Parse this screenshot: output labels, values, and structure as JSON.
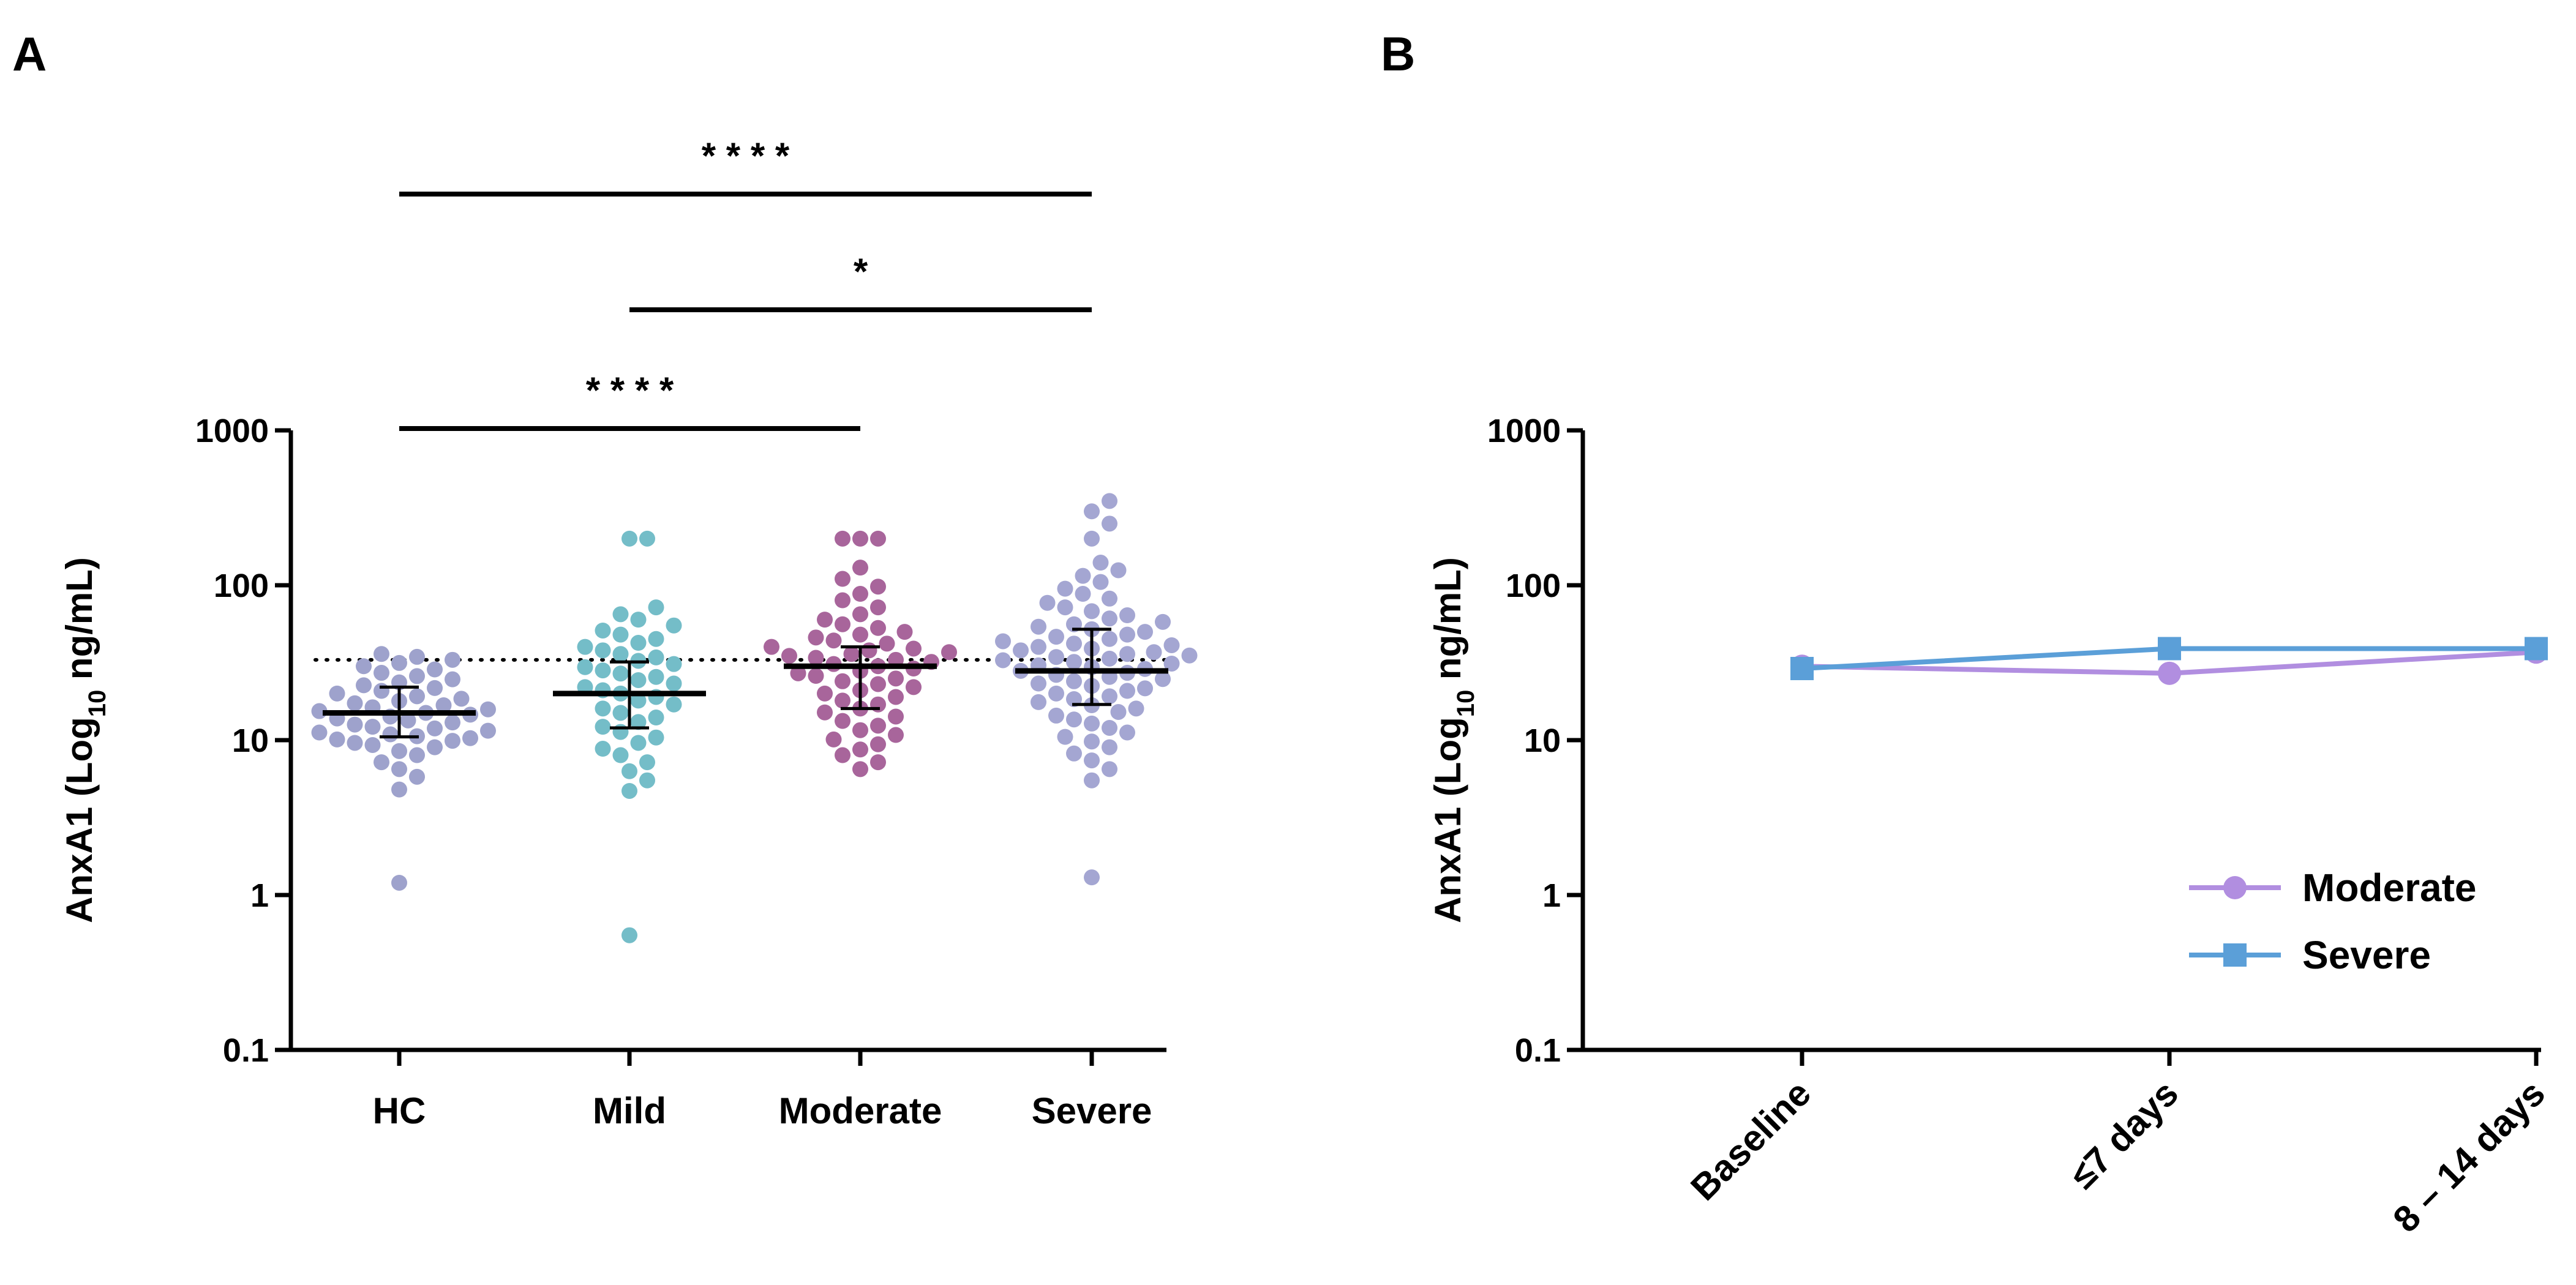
{
  "chart_data": [
    {
      "panel": "A",
      "type": "scatter",
      "title": "",
      "xlabel": "",
      "ylabel": "AnxA1 (Log",
      "ylabel_sub": "10",
      "ylabel_tail": " ng/mL)",
      "yscale": "log",
      "ylim": [
        0.1,
        1000
      ],
      "yticks": [
        0.1,
        1,
        10,
        100,
        1000
      ],
      "ytick_labels": [
        "0.1",
        "1",
        "10",
        "100",
        "1000"
      ],
      "categories": [
        "HC",
        "Mild",
        "Moderate",
        "Severe"
      ],
      "reference_line": 33,
      "groups": [
        {
          "name": "HC",
          "color": "#9ea2cc",
          "median": 15,
          "q1": 10.5,
          "q3": 22,
          "points": [
            1.2,
            4.8,
            5.8,
            6.5,
            7.2,
            8.0,
            8.5,
            9.0,
            9.3,
            9.6,
            9.9,
            10.1,
            10.3,
            10.6,
            10.9,
            11.2,
            11.5,
            11.9,
            12.2,
            12.6,
            13.0,
            13.4,
            13.8,
            14.2,
            14.6,
            15.0,
            15.4,
            15.8,
            16.3,
            16.8,
            17.3,
            17.9,
            18.5,
            19.2,
            20.0,
            20.8,
            21.7,
            22.6,
            23.6,
            24.7,
            25.9,
            27.2,
            28.6,
            30.0,
            31.5,
            33.0,
            34.5,
            36.0
          ]
        },
        {
          "name": "Mild",
          "color": "#74bdc8",
          "median": 20,
          "q1": 12,
          "q3": 32,
          "points": [
            0.55,
            4.7,
            5.5,
            6.3,
            7.2,
            8.0,
            8.8,
            9.6,
            10.4,
            11.3,
            12.2,
            13.1,
            14.0,
            15.0,
            16.0,
            17.0,
            18.0,
            19.0,
            20.0,
            21.0,
            22.0,
            23.2,
            24.4,
            25.6,
            26.9,
            28.2,
            29.6,
            31.0,
            32.5,
            34.2,
            36.0,
            38.0,
            40.0,
            42.5,
            45.0,
            48.0,
            51.0,
            55.0,
            60.0,
            65.0,
            72.0,
            200.0,
            200.0
          ]
        },
        {
          "name": "Moderate",
          "color": "#a8659b",
          "median": 30,
          "q1": 16,
          "q3": 40,
          "points": [
            6.5,
            7.2,
            8.0,
            8.7,
            9.4,
            10.1,
            10.8,
            11.6,
            12.4,
            13.3,
            14.2,
            15.1,
            16.0,
            17.0,
            18.0,
            19.0,
            20.0,
            21.0,
            22.0,
            23.0,
            24.0,
            25.0,
            26.0,
            27.0,
            28.0,
            29.0,
            30.0,
            31.0,
            32.0,
            33.0,
            34.0,
            35.0,
            36.0,
            37.0,
            38.0,
            39.0,
            40.0,
            42.0,
            44.0,
            46.0,
            48.0,
            50.0,
            53.0,
            56.0,
            60.0,
            65.0,
            72.0,
            80.0,
            88.0,
            98.0,
            110.0,
            130.0,
            200.0,
            200.0,
            200.0
          ]
        },
        {
          "name": "Severe",
          "color": "#a4a6d2",
          "median": 28,
          "q1": 17,
          "q3": 52,
          "points": [
            1.3,
            5.5,
            6.5,
            7.4,
            8.2,
            9.0,
            9.8,
            10.5,
            11.2,
            12.0,
            12.8,
            13.6,
            14.4,
            15.2,
            16.0,
            16.8,
            17.6,
            18.4,
            19.2,
            20.0,
            20.8,
            21.6,
            22.4,
            23.2,
            24.0,
            24.8,
            25.6,
            26.4,
            27.2,
            28.0,
            28.8,
            29.6,
            30.4,
            31.2,
            32.0,
            32.8,
            33.6,
            34.4,
            35.2,
            36.0,
            37.0,
            38.0,
            39.0,
            40.0,
            41.0,
            42.0,
            43.5,
            45.0,
            46.5,
            48.0,
            50.0,
            52.0,
            54.0,
            56.0,
            58.0,
            61.0,
            64.0,
            68.0,
            72.0,
            77.0,
            82.0,
            88.0,
            95.0,
            105.0,
            115.0,
            125.0,
            140.0,
            200.0,
            250.0,
            300.0,
            350.0
          ]
        }
      ],
      "significance": [
        {
          "from": "HC",
          "to": "Severe",
          "label": "* * * *"
        },
        {
          "from": "Mild",
          "to": "Severe",
          "label": "*"
        },
        {
          "from": "HC",
          "to": "Moderate",
          "label": "* * * *"
        }
      ]
    },
    {
      "panel": "B",
      "type": "line",
      "title": "",
      "xlabel": "",
      "ylabel": "AnxA1 (Log",
      "ylabel_sub": "10",
      "ylabel_tail": " ng/mL)",
      "yscale": "log",
      "ylim": [
        0.1,
        1000
      ],
      "yticks": [
        0.1,
        1,
        10,
        100,
        1000
      ],
      "ytick_labels": [
        "0.1",
        "1",
        "10",
        "100",
        "1000"
      ],
      "categories": [
        "Baseline",
        "≤7 days",
        "8 – 14 days"
      ],
      "legend_position": "right",
      "series": [
        {
          "name": "Moderate",
          "color": "#b18ee0",
          "marker": "circle",
          "values": [
            30,
            27,
            37
          ]
        },
        {
          "name": "Severe",
          "color": "#5b9fd8",
          "marker": "square",
          "values": [
            29,
            39,
            39
          ]
        }
      ]
    }
  ]
}
